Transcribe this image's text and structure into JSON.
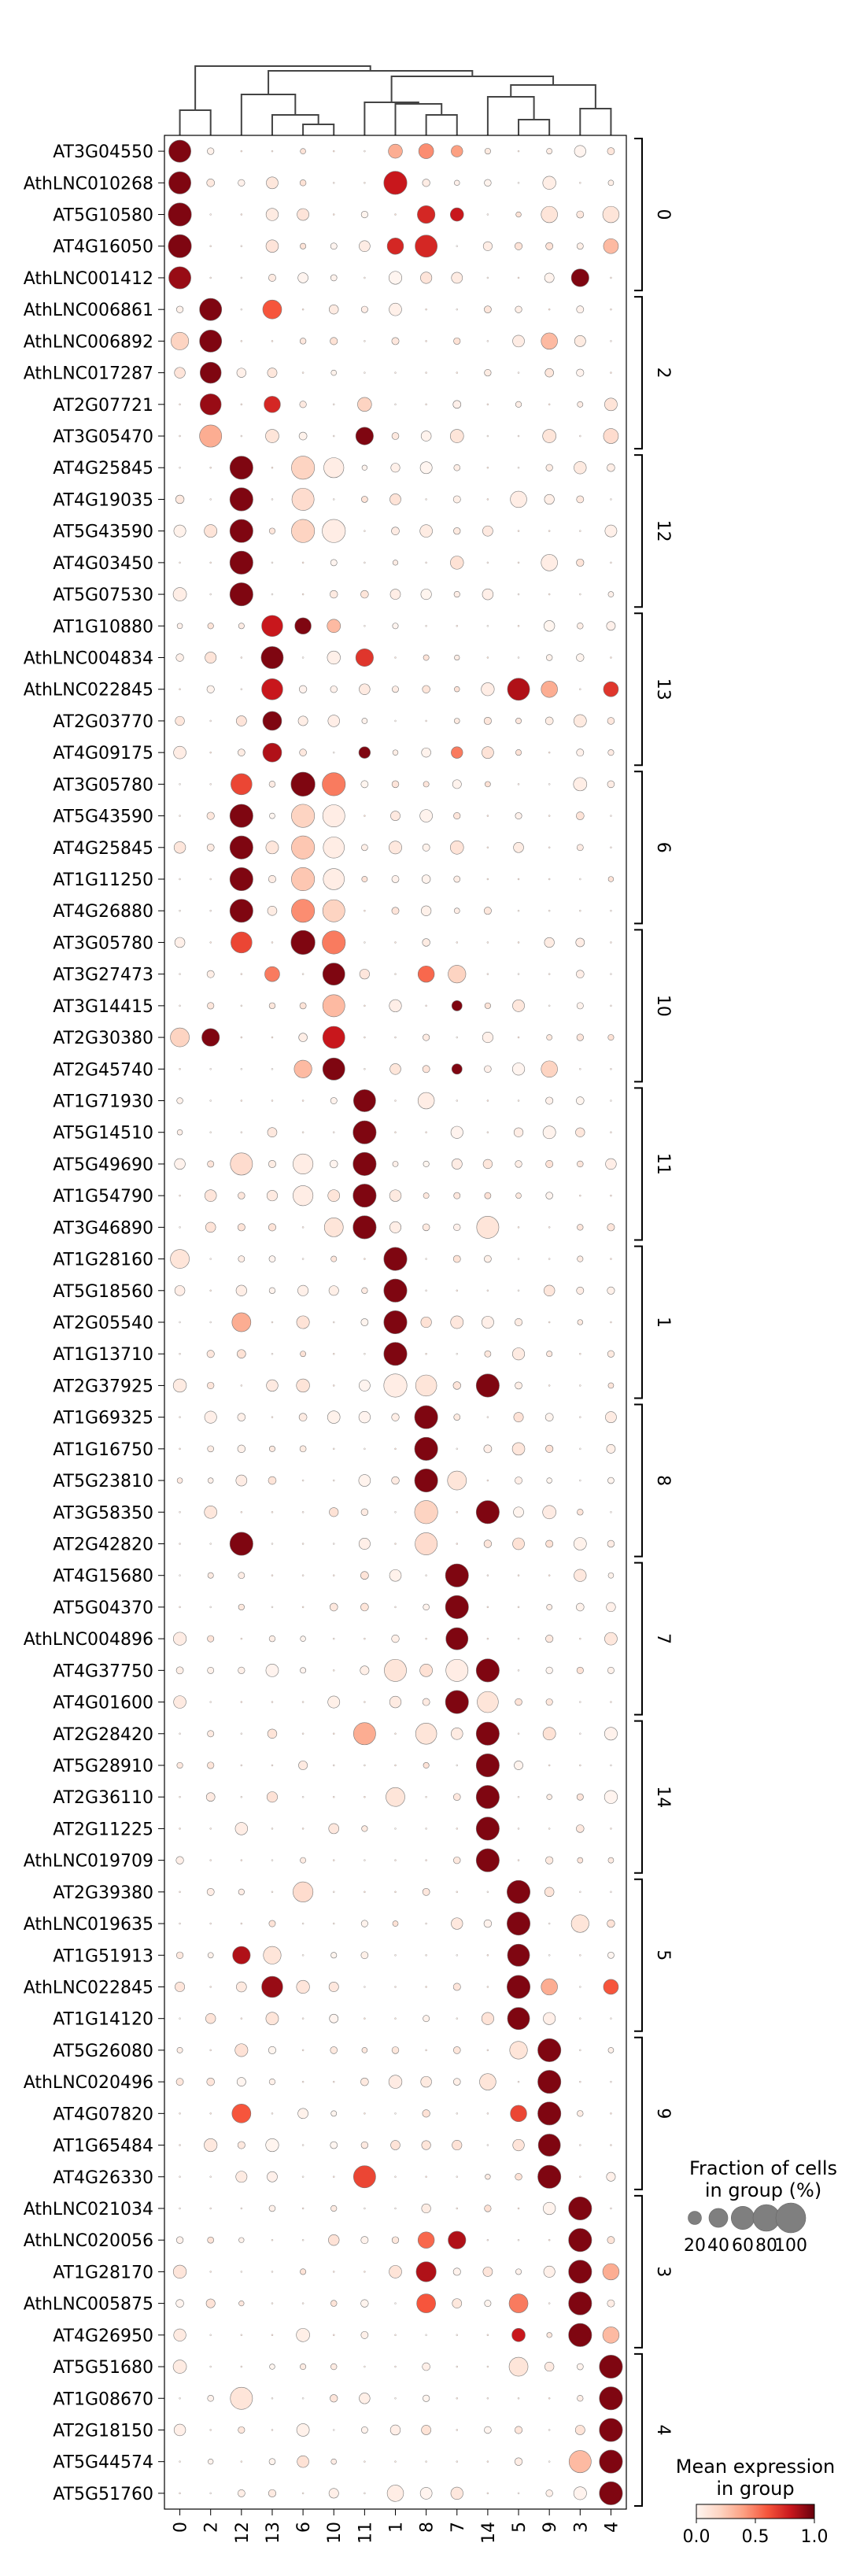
{
  "chart_data": {
    "type": "dotplot",
    "groups": [
      "0",
      "2",
      "12",
      "13",
      "6",
      "10",
      "11",
      "1",
      "8",
      "7",
      "14",
      "5",
      "9",
      "3",
      "4"
    ],
    "genes": [
      "AT3G04550",
      "AthLNC010268",
      "AT5G10580",
      "AT4G16050",
      "AthLNC001412",
      "AthLNC006861",
      "AthLNC006892",
      "AthLNC017287",
      "AT2G07721",
      "AT3G05470",
      "AT4G25845",
      "AT4G19035",
      "AT5G43590",
      "AT4G03450",
      "AT5G07530",
      "AT1G10880",
      "AthLNC004834",
      "AthLNC022845",
      "AT2G03770",
      "AT4G09175",
      "AT3G05780",
      "AT5G43590",
      "AT4G25845",
      "AT1G11250",
      "AT4G26880",
      "AT3G05780",
      "AT3G27473",
      "AT3G14415",
      "AT2G30380",
      "AT2G45740",
      "AT1G71930",
      "AT5G14510",
      "AT5G49690",
      "AT1G54790",
      "AT3G46890",
      "AT1G28160",
      "AT5G18560",
      "AT2G05540",
      "AT1G13710",
      "AT2G37925",
      "AT1G69325",
      "AT1G16750",
      "AT5G23810",
      "AT3G58350",
      "AT2G42820",
      "AT4G15680",
      "AT5G04370",
      "AthLNC004896",
      "AT4G37750",
      "AT4G01600",
      "AT2G28420",
      "AT5G28910",
      "AT2G36110",
      "AT2G11225",
      "AthLNC019709",
      "AT2G39380",
      "AthLNC019635",
      "AT1G51913",
      "AthLNC022845",
      "AT1G14120",
      "AT5G26080",
      "AthLNC020496",
      "AT4G07820",
      "AT1G65484",
      "AT4G26330",
      "AthLNC021034",
      "AthLNC020056",
      "AT1G28170",
      "AthLNC005875",
      "AT4G26950",
      "AT5G51680",
      "AT1G08670",
      "AT2G18150",
      "AT5G44574",
      "AT5G51760"
    ],
    "gene_groups": [
      {
        "label": "0",
        "start": 0,
        "end": 4
      },
      {
        "label": "2",
        "start": 5,
        "end": 9
      },
      {
        "label": "12",
        "start": 10,
        "end": 14
      },
      {
        "label": "13",
        "start": 15,
        "end": 19
      },
      {
        "label": "6",
        "start": 20,
        "end": 24
      },
      {
        "label": "10",
        "start": 25,
        "end": 29
      },
      {
        "label": "11",
        "start": 30,
        "end": 34
      },
      {
        "label": "1",
        "start": 35,
        "end": 39
      },
      {
        "label": "8",
        "start": 40,
        "end": 44
      },
      {
        "label": "7",
        "start": 45,
        "end": 49
      },
      {
        "label": "14",
        "start": 50,
        "end": 54
      },
      {
        "label": "5",
        "start": 55,
        "end": 59
      },
      {
        "label": "9",
        "start": 60,
        "end": 64
      },
      {
        "label": "3",
        "start": 65,
        "end": 69
      },
      {
        "label": "4",
        "start": 70,
        "end": 74
      }
    ],
    "highlights": [
      {
        "row": 0,
        "col": 0,
        "f": 0.55,
        "e": 0.95
      },
      {
        "row": 0,
        "col": 7,
        "f": 0.22,
        "e": 0.35
      },
      {
        "row": 0,
        "col": 8,
        "f": 0.25,
        "e": 0.45
      },
      {
        "row": 0,
        "col": 9,
        "f": 0.15,
        "e": 0.4
      },
      {
        "row": 1,
        "col": 0,
        "f": 0.55,
        "e": 0.95
      },
      {
        "row": 1,
        "col": 7,
        "f": 0.6,
        "e": 0.8
      },
      {
        "row": 2,
        "col": 0,
        "f": 0.6,
        "e": 0.95
      },
      {
        "row": 2,
        "col": 8,
        "f": 0.35,
        "e": 0.75
      },
      {
        "row": 2,
        "col": 9,
        "f": 0.2,
        "e": 0.8
      },
      {
        "row": 2,
        "col": 12,
        "f": 0.3,
        "e": 0.1
      },
      {
        "row": 2,
        "col": 14,
        "f": 0.3,
        "e": 0.1
      },
      {
        "row": 3,
        "col": 0,
        "f": 0.6,
        "e": 0.95
      },
      {
        "row": 3,
        "col": 7,
        "f": 0.3,
        "e": 0.75
      },
      {
        "row": 3,
        "col": 8,
        "f": 0.55,
        "e": 0.75
      },
      {
        "row": 3,
        "col": 14,
        "f": 0.25,
        "e": 0.3
      },
      {
        "row": 4,
        "col": 0,
        "f": 0.55,
        "e": 0.9
      },
      {
        "row": 4,
        "col": 13,
        "f": 0.35,
        "e": 0.95
      },
      {
        "row": 5,
        "col": 1,
        "f": 0.55,
        "e": 0.95
      },
      {
        "row": 5,
        "col": 3,
        "f": 0.4,
        "e": 0.6
      },
      {
        "row": 6,
        "col": 0,
        "f": 0.35,
        "e": 0.2
      },
      {
        "row": 6,
        "col": 1,
        "f": 0.55,
        "e": 0.95
      },
      {
        "row": 6,
        "col": 12,
        "f": 0.3,
        "e": 0.3
      },
      {
        "row": 7,
        "col": 1,
        "f": 0.5,
        "e": 0.95
      },
      {
        "row": 8,
        "col": 1,
        "f": 0.5,
        "e": 0.9
      },
      {
        "row": 8,
        "col": 3,
        "f": 0.3,
        "e": 0.75
      },
      {
        "row": 8,
        "col": 6,
        "f": 0.22,
        "e": 0.2
      },
      {
        "row": 9,
        "col": 1,
        "f": 0.55,
        "e": 0.35
      },
      {
        "row": 9,
        "col": 3,
        "f": 0.2,
        "e": 0.1
      },
      {
        "row": 9,
        "col": 6,
        "f": 0.35,
        "e": 0.95
      },
      {
        "row": 9,
        "col": 9,
        "f": 0.2,
        "e": 0.1
      },
      {
        "row": 9,
        "col": 12,
        "f": 0.2,
        "e": 0.1
      },
      {
        "row": 9,
        "col": 14,
        "f": 0.25,
        "e": 0.15
      },
      {
        "row": 10,
        "col": 2,
        "f": 0.6,
        "e": 0.95
      },
      {
        "row": 10,
        "col": 4,
        "f": 0.6,
        "e": 0.2
      },
      {
        "row": 10,
        "col": 5,
        "f": 0.45,
        "e": 0.05
      },
      {
        "row": 11,
        "col": 2,
        "f": 0.6,
        "e": 0.95
      },
      {
        "row": 11,
        "col": 4,
        "f": 0.55,
        "e": 0.15
      },
      {
        "row": 11,
        "col": 11,
        "f": 0.3,
        "e": 0.05
      },
      {
        "row": 12,
        "col": 2,
        "f": 0.6,
        "e": 0.95
      },
      {
        "row": 12,
        "col": 4,
        "f": 0.6,
        "e": 0.2
      },
      {
        "row": 12,
        "col": 5,
        "f": 0.6,
        "e": 0.05
      },
      {
        "row": 13,
        "col": 2,
        "f": 0.6,
        "e": 0.95
      },
      {
        "row": 13,
        "col": 12,
        "f": 0.3,
        "e": 0.05
      },
      {
        "row": 14,
        "col": 2,
        "f": 0.6,
        "e": 0.95
      },
      {
        "row": 15,
        "col": 3,
        "f": 0.5,
        "e": 0.8
      },
      {
        "row": 15,
        "col": 4,
        "f": 0.3,
        "e": 0.95
      },
      {
        "row": 15,
        "col": 5,
        "f": 0.2,
        "e": 0.3
      },
      {
        "row": 16,
        "col": 3,
        "f": 0.55,
        "e": 0.95
      },
      {
        "row": 16,
        "col": 6,
        "f": 0.35,
        "e": 0.7
      },
      {
        "row": 17,
        "col": 3,
        "f": 0.5,
        "e": 0.8
      },
      {
        "row": 17,
        "col": 11,
        "f": 0.55,
        "e": 0.85
      },
      {
        "row": 17,
        "col": 12,
        "f": 0.3,
        "e": 0.35
      },
      {
        "row": 17,
        "col": 14,
        "f": 0.25,
        "e": 0.7
      },
      {
        "row": 18,
        "col": 3,
        "f": 0.4,
        "e": 0.95
      },
      {
        "row": 19,
        "col": 3,
        "f": 0.4,
        "e": 0.85
      },
      {
        "row": 19,
        "col": 6,
        "f": 0.15,
        "e": 0.95
      },
      {
        "row": 19,
        "col": 9,
        "f": 0.15,
        "e": 0.5
      },
      {
        "row": 20,
        "col": 2,
        "f": 0.5,
        "e": 0.65
      },
      {
        "row": 20,
        "col": 4,
        "f": 0.65,
        "e": 0.95
      },
      {
        "row": 20,
        "col": 5,
        "f": 0.6,
        "e": 0.5
      },
      {
        "row": 21,
        "col": 2,
        "f": 0.6,
        "e": 0.95
      },
      {
        "row": 21,
        "col": 4,
        "f": 0.6,
        "e": 0.2
      },
      {
        "row": 21,
        "col": 5,
        "f": 0.55,
        "e": 0.05
      },
      {
        "row": 22,
        "col": 2,
        "f": 0.6,
        "e": 0.95
      },
      {
        "row": 22,
        "col": 4,
        "f": 0.6,
        "e": 0.25
      },
      {
        "row": 22,
        "col": 5,
        "f": 0.5,
        "e": 0.05
      },
      {
        "row": 23,
        "col": 2,
        "f": 0.6,
        "e": 0.95
      },
      {
        "row": 23,
        "col": 4,
        "f": 0.6,
        "e": 0.25
      },
      {
        "row": 23,
        "col": 5,
        "f": 0.5,
        "e": 0.05
      },
      {
        "row": 24,
        "col": 2,
        "f": 0.6,
        "e": 0.95
      },
      {
        "row": 24,
        "col": 4,
        "f": 0.6,
        "e": 0.45
      },
      {
        "row": 24,
        "col": 5,
        "f": 0.55,
        "e": 0.2
      },
      {
        "row": 25,
        "col": 2,
        "f": 0.5,
        "e": 0.65
      },
      {
        "row": 25,
        "col": 4,
        "f": 0.65,
        "e": 0.95
      },
      {
        "row": 25,
        "col": 5,
        "f": 0.6,
        "e": 0.5
      },
      {
        "row": 26,
        "col": 3,
        "f": 0.25,
        "e": 0.5
      },
      {
        "row": 26,
        "col": 5,
        "f": 0.55,
        "e": 0.95
      },
      {
        "row": 26,
        "col": 8,
        "f": 0.3,
        "e": 0.55
      },
      {
        "row": 26,
        "col": 9,
        "f": 0.35,
        "e": 0.2
      },
      {
        "row": 27,
        "col": 5,
        "f": 0.55,
        "e": 0.3
      },
      {
        "row": 27,
        "col": 9,
        "f": 0.12,
        "e": 0.95
      },
      {
        "row": 28,
        "col": 0,
        "f": 0.4,
        "e": 0.2
      },
      {
        "row": 28,
        "col": 1,
        "f": 0.35,
        "e": 0.95
      },
      {
        "row": 28,
        "col": 5,
        "f": 0.55,
        "e": 0.8
      },
      {
        "row": 29,
        "col": 4,
        "f": 0.35,
        "e": 0.3
      },
      {
        "row": 29,
        "col": 5,
        "f": 0.55,
        "e": 0.95
      },
      {
        "row": 29,
        "col": 9,
        "f": 0.12,
        "e": 0.95
      },
      {
        "row": 29,
        "col": 12,
        "f": 0.3,
        "e": 0.2
      },
      {
        "row": 30,
        "col": 6,
        "f": 0.55,
        "e": 0.95
      },
      {
        "row": 30,
        "col": 8,
        "f": 0.3,
        "e": 0.05
      },
      {
        "row": 31,
        "col": 6,
        "f": 0.6,
        "e": 0.95
      },
      {
        "row": 32,
        "col": 2,
        "f": 0.55,
        "e": 0.15
      },
      {
        "row": 32,
        "col": 4,
        "f": 0.45,
        "e": 0.05
      },
      {
        "row": 32,
        "col": 6,
        "f": 0.6,
        "e": 0.95
      },
      {
        "row": 33,
        "col": 4,
        "f": 0.45,
        "e": 0.05
      },
      {
        "row": 33,
        "col": 6,
        "f": 0.6,
        "e": 0.95
      },
      {
        "row": 34,
        "col": 5,
        "f": 0.4,
        "e": 0.1
      },
      {
        "row": 34,
        "col": 6,
        "f": 0.6,
        "e": 0.95
      },
      {
        "row": 34,
        "col": 10,
        "f": 0.55,
        "e": 0.1
      },
      {
        "row": 35,
        "col": 0,
        "f": 0.4,
        "e": 0.1
      },
      {
        "row": 35,
        "col": 7,
        "f": 0.6,
        "e": 0.95
      },
      {
        "row": 36,
        "col": 7,
        "f": 0.6,
        "e": 0.95
      },
      {
        "row": 37,
        "col": 2,
        "f": 0.4,
        "e": 0.35
      },
      {
        "row": 37,
        "col": 7,
        "f": 0.6,
        "e": 0.95
      },
      {
        "row": 38,
        "col": 7,
        "f": 0.6,
        "e": 0.95
      },
      {
        "row": 39,
        "col": 7,
        "f": 0.6,
        "e": 0.05
      },
      {
        "row": 39,
        "col": 8,
        "f": 0.5,
        "e": 0.1
      },
      {
        "row": 39,
        "col": 10,
        "f": 0.6,
        "e": 0.95
      },
      {
        "row": 40,
        "col": 8,
        "f": 0.6,
        "e": 0.95
      },
      {
        "row": 41,
        "col": 8,
        "f": 0.6,
        "e": 0.95
      },
      {
        "row": 42,
        "col": 8,
        "f": 0.6,
        "e": 0.95
      },
      {
        "row": 42,
        "col": 9,
        "f": 0.4,
        "e": 0.1
      },
      {
        "row": 43,
        "col": 8,
        "f": 0.6,
        "e": 0.2
      },
      {
        "row": 43,
        "col": 10,
        "f": 0.6,
        "e": 0.95
      },
      {
        "row": 44,
        "col": 2,
        "f": 0.6,
        "e": 0.95
      },
      {
        "row": 44,
        "col": 8,
        "f": 0.55,
        "e": 0.15
      },
      {
        "row": 45,
        "col": 9,
        "f": 0.6,
        "e": 0.95
      },
      {
        "row": 46,
        "col": 9,
        "f": 0.6,
        "e": 0.95
      },
      {
        "row": 47,
        "col": 9,
        "f": 0.55,
        "e": 0.95
      },
      {
        "row": 48,
        "col": 7,
        "f": 0.55,
        "e": 0.1
      },
      {
        "row": 48,
        "col": 9,
        "f": 0.55,
        "e": 0.05
      },
      {
        "row": 48,
        "col": 10,
        "f": 0.6,
        "e": 0.95
      },
      {
        "row": 49,
        "col": 9,
        "f": 0.6,
        "e": 0.95
      },
      {
        "row": 49,
        "col": 10,
        "f": 0.5,
        "e": 0.1
      },
      {
        "row": 50,
        "col": 6,
        "f": 0.55,
        "e": 0.35
      },
      {
        "row": 50,
        "col": 8,
        "f": 0.5,
        "e": 0.1
      },
      {
        "row": 50,
        "col": 10,
        "f": 0.6,
        "e": 0.95
      },
      {
        "row": 51,
        "col": 10,
        "f": 0.6,
        "e": 0.95
      },
      {
        "row": 52,
        "col": 7,
        "f": 0.4,
        "e": 0.1
      },
      {
        "row": 52,
        "col": 10,
        "f": 0.6,
        "e": 0.95
      },
      {
        "row": 53,
        "col": 10,
        "f": 0.6,
        "e": 0.95
      },
      {
        "row": 54,
        "col": 10,
        "f": 0.6,
        "e": 0.95
      },
      {
        "row": 55,
        "col": 4,
        "f": 0.45,
        "e": 0.15
      },
      {
        "row": 55,
        "col": 11,
        "f": 0.6,
        "e": 0.95
      },
      {
        "row": 56,
        "col": 11,
        "f": 0.6,
        "e": 0.95
      },
      {
        "row": 56,
        "col": 13,
        "f": 0.35,
        "e": 0.1
      },
      {
        "row": 57,
        "col": 2,
        "f": 0.35,
        "e": 0.85
      },
      {
        "row": 57,
        "col": 3,
        "f": 0.35,
        "e": 0.1
      },
      {
        "row": 57,
        "col": 11,
        "f": 0.55,
        "e": 0.95
      },
      {
        "row": 58,
        "col": 3,
        "f": 0.5,
        "e": 0.9
      },
      {
        "row": 58,
        "col": 11,
        "f": 0.6,
        "e": 0.95
      },
      {
        "row": 58,
        "col": 12,
        "f": 0.3,
        "e": 0.35
      },
      {
        "row": 58,
        "col": 14,
        "f": 0.25,
        "e": 0.6
      },
      {
        "row": 59,
        "col": 11,
        "f": 0.55,
        "e": 0.95
      },
      {
        "row": 60,
        "col": 11,
        "f": 0.35,
        "e": 0.1
      },
      {
        "row": 60,
        "col": 12,
        "f": 0.6,
        "e": 0.95
      },
      {
        "row": 61,
        "col": 10,
        "f": 0.3,
        "e": 0.1
      },
      {
        "row": 61,
        "col": 12,
        "f": 0.6,
        "e": 0.95
      },
      {
        "row": 62,
        "col": 2,
        "f": 0.4,
        "e": 0.6
      },
      {
        "row": 62,
        "col": 11,
        "f": 0.3,
        "e": 0.65
      },
      {
        "row": 62,
        "col": 12,
        "f": 0.6,
        "e": 0.95
      },
      {
        "row": 63,
        "col": 12,
        "f": 0.55,
        "e": 0.95
      },
      {
        "row": 64,
        "col": 6,
        "f": 0.55,
        "e": 0.65
      },
      {
        "row": 64,
        "col": 12,
        "f": 0.6,
        "e": 0.95
      },
      {
        "row": 65,
        "col": 13,
        "f": 0.6,
        "e": 0.95
      },
      {
        "row": 66,
        "col": 8,
        "f": 0.3,
        "e": 0.55
      },
      {
        "row": 66,
        "col": 9,
        "f": 0.35,
        "e": 0.85
      },
      {
        "row": 66,
        "col": 13,
        "f": 0.6,
        "e": 0.95
      },
      {
        "row": 67,
        "col": 8,
        "f": 0.45,
        "e": 0.85
      },
      {
        "row": 67,
        "col": 13,
        "f": 0.6,
        "e": 0.95
      },
      {
        "row": 67,
        "col": 14,
        "f": 0.3,
        "e": 0.35
      },
      {
        "row": 68,
        "col": 8,
        "f": 0.4,
        "e": 0.6
      },
      {
        "row": 68,
        "col": 11,
        "f": 0.4,
        "e": 0.5
      },
      {
        "row": 68,
        "col": 13,
        "f": 0.6,
        "e": 0.95
      },
      {
        "row": 69,
        "col": 11,
        "f": 0.2,
        "e": 0.8
      },
      {
        "row": 69,
        "col": 13,
        "f": 0.6,
        "e": 0.95
      },
      {
        "row": 69,
        "col": 14,
        "f": 0.3,
        "e": 0.3
      },
      {
        "row": 70,
        "col": 11,
        "f": 0.4,
        "e": 0.1
      },
      {
        "row": 70,
        "col": 14,
        "f": 0.6,
        "e": 0.95
      },
      {
        "row": 71,
        "col": 2,
        "f": 0.55,
        "e": 0.1
      },
      {
        "row": 71,
        "col": 14,
        "f": 0.6,
        "e": 0.95
      },
      {
        "row": 72,
        "col": 14,
        "f": 0.6,
        "e": 0.95
      },
      {
        "row": 73,
        "col": 13,
        "f": 0.55,
        "e": 0.3
      },
      {
        "row": 73,
        "col": 14,
        "f": 0.6,
        "e": 0.95
      },
      {
        "row": 74,
        "col": 7,
        "f": 0.3,
        "e": 0.05
      },
      {
        "row": 74,
        "col": 14,
        "f": 0.6,
        "e": 0.95
      }
    ],
    "size_legend": {
      "title_line1": "Fraction of cells",
      "title_line2": "in group (%)",
      "ticks": [
        "20",
        "40",
        "60",
        "80",
        "100"
      ],
      "values": [
        20,
        40,
        60,
        80,
        100
      ]
    },
    "color_legend": {
      "title_line1": "Mean expression",
      "title_line2": "in group",
      "ticks": [
        "0.0",
        "0.5",
        "1.0"
      ],
      "min": 0,
      "max": 1
    },
    "colormap": "Reds",
    "dendrogram": true
  }
}
